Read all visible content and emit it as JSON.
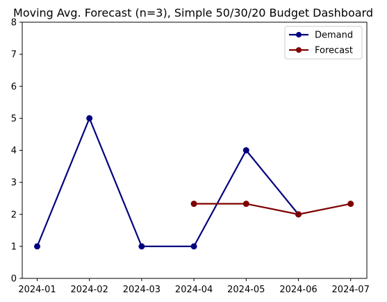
{
  "chart_data": {
    "type": "line",
    "title": "Moving Avg. Forecast (n=3), Simple 50/30/20 Budget Dashboard",
    "xlabel": "",
    "ylabel": "",
    "x": [
      "2024-01",
      "2024-02",
      "2024-03",
      "2024-04",
      "2024-05",
      "2024-06",
      "2024-07"
    ],
    "ylim": [
      0,
      8
    ],
    "yticks": [
      "0",
      "1",
      "2",
      "3",
      "4",
      "5",
      "6",
      "7",
      "8"
    ],
    "grid": false,
    "legend_position": "top-right",
    "series": [
      {
        "name": "Demand",
        "color": "#00007f",
        "marker": "circle",
        "points": [
          {
            "x": "2024-01",
            "y": 1
          },
          {
            "x": "2024-02",
            "y": 5
          },
          {
            "x": "2024-03",
            "y": 1
          },
          {
            "x": "2024-04",
            "y": 1
          },
          {
            "x": "2024-05",
            "y": 4
          },
          {
            "x": "2024-06",
            "y": 2
          }
        ]
      },
      {
        "name": "Forecast",
        "color": "#7f0000",
        "marker": "circle",
        "points": [
          {
            "x": "2024-04",
            "y": 2.33
          },
          {
            "x": "2024-05",
            "y": 2.33
          },
          {
            "x": "2024-06",
            "y": 2.0
          },
          {
            "x": "2024-07",
            "y": 2.33
          }
        ]
      }
    ]
  }
}
